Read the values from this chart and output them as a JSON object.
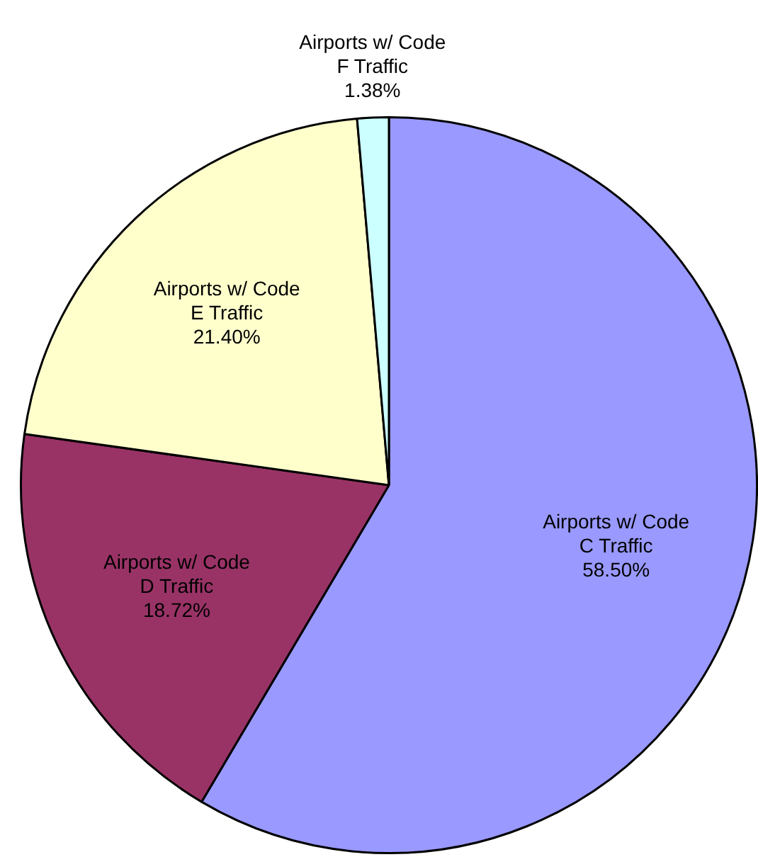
{
  "chart_data": {
    "type": "pie",
    "categories": [
      "Airports w/ Code C Traffic",
      "Airports w/ Code D Traffic",
      "Airports w/ Code E Traffic",
      "Airports w/ Code F Traffic"
    ],
    "values": [
      58.5,
      18.72,
      21.4,
      1.38
    ],
    "value_labels": [
      "58.50%",
      "18.72%",
      "21.40%",
      "1.38%"
    ],
    "colors": [
      "#9999ff",
      "#993366",
      "#ffffcc",
      "#ccffff"
    ],
    "legend": false
  }
}
